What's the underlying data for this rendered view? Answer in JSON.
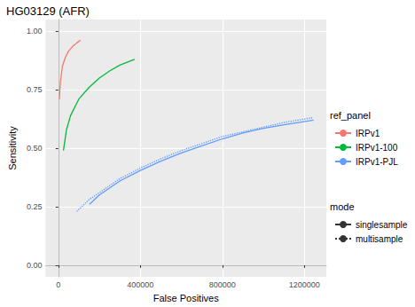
{
  "chart_data": {
    "type": "line",
    "title": "HG03129 (AFR)",
    "x_label": "False Positives",
    "y_label": "Sensitivity",
    "xlim": [
      -62000,
      1307000
    ],
    "ylim": [
      -0.05,
      1.05
    ],
    "xticks": [
      0,
      400000,
      800000,
      1200000
    ],
    "yticks": [
      {
        "value": 0,
        "label": "0.00"
      },
      0.25,
      {
        "value": 0.5,
        "label": "0.50"
      },
      {
        "value": 0.75,
        "label": "0.75"
      },
      {
        "value": 1,
        "label": "1.00"
      }
    ],
    "grid": true,
    "legend": "right",
    "color_legend_title": "ref_panel",
    "line_style_legend_title": "mode",
    "modes": [
      {
        "name": "singlesample",
        "line_style": "solid"
      },
      {
        "name": "multisample",
        "line_style": "dotted"
      }
    ],
    "series": [
      {
        "name": "IRPv1",
        "mode": "singlesample",
        "color": "#F8766D",
        "line_style": "solid",
        "x": [
          5000,
          10000,
          20000,
          35000,
          50000,
          70000,
          90000,
          108000
        ],
        "values": [
          0.71,
          0.78,
          0.85,
          0.89,
          0.915,
          0.935,
          0.95,
          0.962
        ]
      },
      {
        "name": "IRPv1-100",
        "mode": "singlesample",
        "color": "#00BA38",
        "line_style": "solid",
        "x": [
          25000,
          40000,
          60000,
          100000,
          150000,
          200000,
          250000,
          300000,
          372000
        ],
        "values": [
          0.49,
          0.58,
          0.64,
          0.71,
          0.76,
          0.8,
          0.83,
          0.855,
          0.88
        ]
      },
      {
        "name": "IRPv1-PJL",
        "mode": "singlesample",
        "color": "#619CFF",
        "line_style": "solid",
        "x": [
          152000,
          200000,
          300000,
          400000,
          500000,
          600000,
          700000,
          800000,
          900000,
          1000000,
          1100000,
          1245000
        ],
        "values": [
          0.26,
          0.3,
          0.36,
          0.405,
          0.445,
          0.48,
          0.51,
          0.54,
          0.565,
          0.585,
          0.6,
          0.62
        ]
      },
      {
        "name": "IRPv1-PJL",
        "mode": "multisample",
        "color": "#619CFF",
        "line_style": "dotted",
        "x": [
          90000,
          150000,
          200000,
          300000,
          400000,
          500000,
          600000,
          700000,
          800000,
          900000,
          1000000,
          1100000,
          1238000
        ],
        "values": [
          0.23,
          0.28,
          0.31,
          0.37,
          0.415,
          0.455,
          0.49,
          0.52,
          0.55,
          0.57,
          0.59,
          0.61,
          0.63
        ]
      }
    ]
  }
}
